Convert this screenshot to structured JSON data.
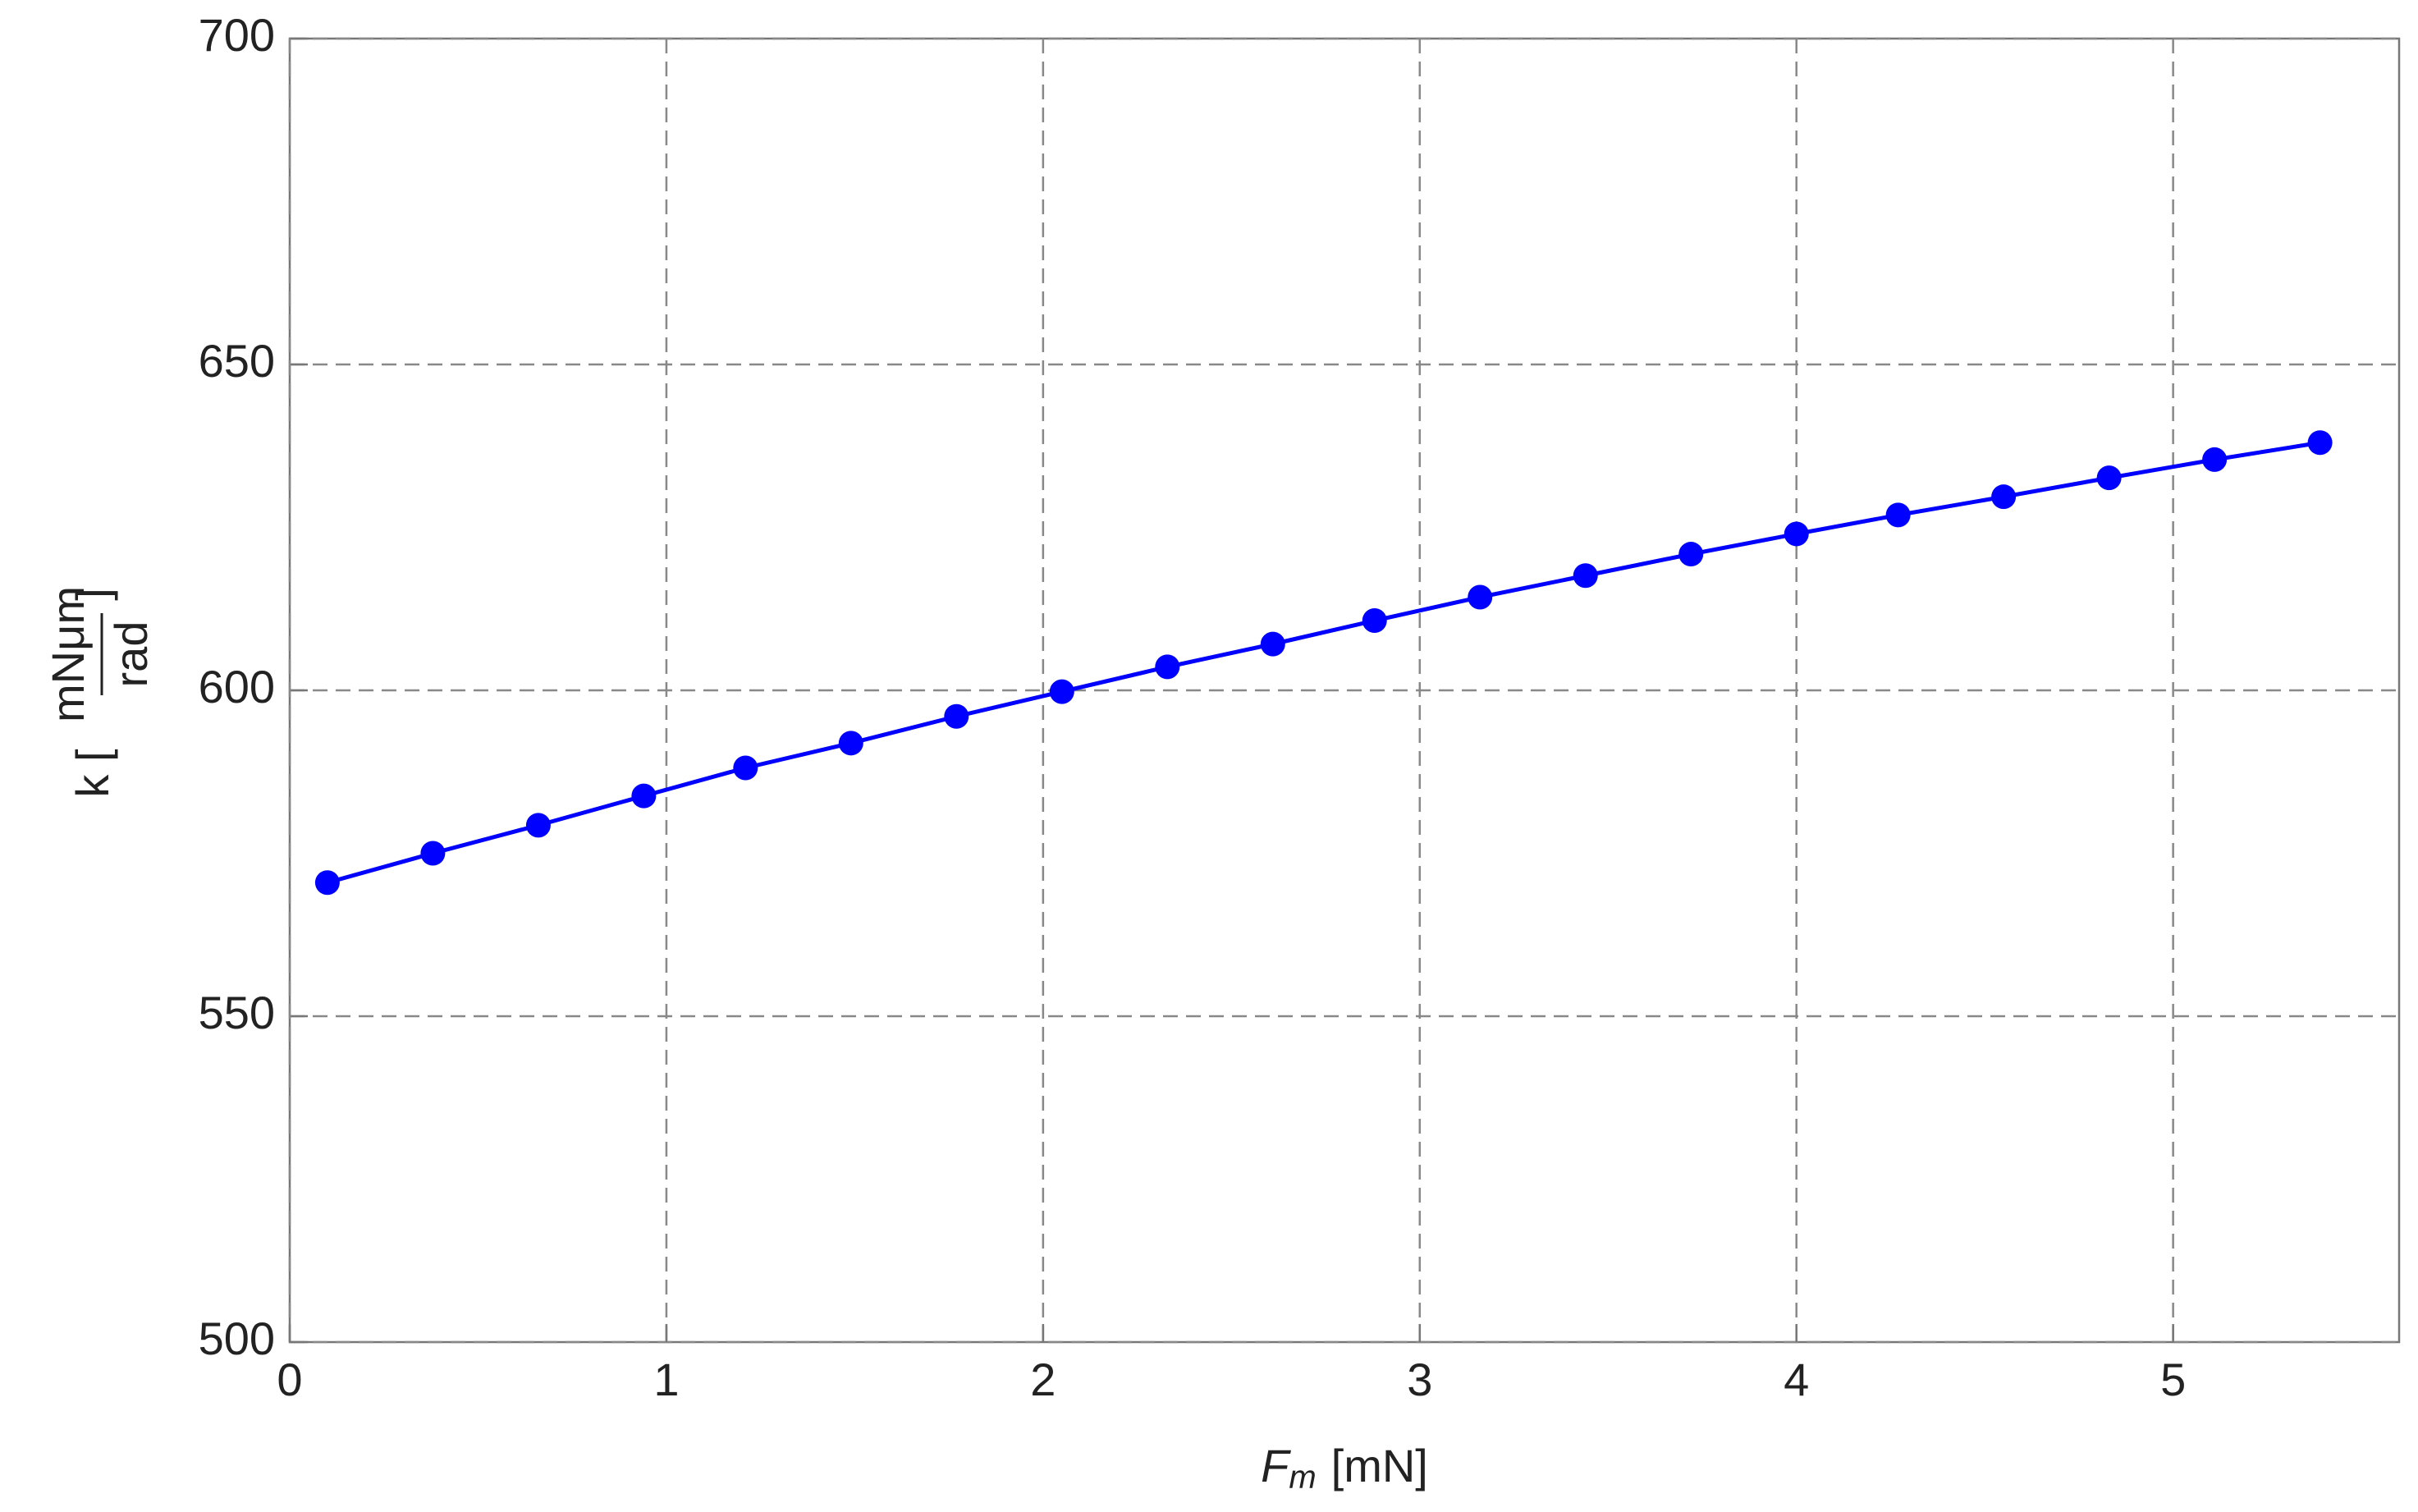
{
  "chart_data": {
    "type": "line",
    "xlabel": {
      "symbol": "F",
      "subscript": "m",
      "unit": "[mN]"
    },
    "ylabel": {
      "prefix": "k [",
      "numerator": "mNμm",
      "denominator": "rad",
      "suffix": "]"
    },
    "x": [
      0.1,
      0.38,
      0.66,
      0.94,
      1.21,
      1.49,
      1.77,
      2.05,
      2.33,
      2.61,
      2.88,
      3.16,
      3.44,
      3.72,
      4.0,
      4.27,
      4.55,
      4.83,
      5.11,
      5.39
    ],
    "series": [
      {
        "color": "#0000ff",
        "values": [
          570.5,
          575.0,
          579.3,
          583.8,
          588.1,
          591.9,
          596.0,
          599.8,
          603.6,
          607.1,
          610.7,
          614.3,
          617.6,
          620.9,
          624.0,
          626.9,
          629.7,
          632.6,
          635.4,
          638.0
        ]
      }
    ],
    "xlim": [
      0,
      5.6
    ],
    "xticks": [
      0,
      1,
      2,
      3,
      4,
      5
    ],
    "ylim": [
      500,
      700
    ],
    "yticks": [
      500,
      550,
      600,
      650,
      700
    ],
    "grid": true
  }
}
